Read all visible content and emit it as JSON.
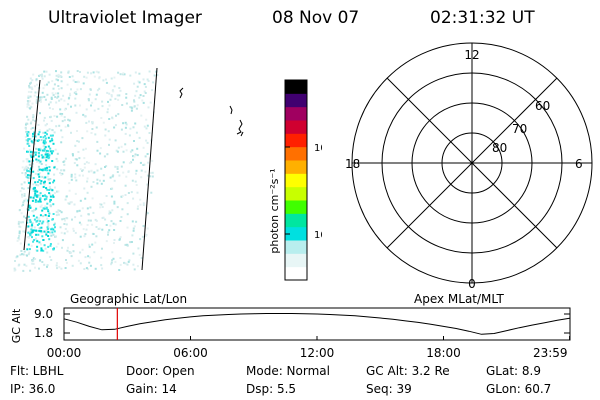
{
  "header": {
    "title": "Ultraviolet Imager",
    "date": "08 Nov 07",
    "time": "02:31:32 UT"
  },
  "colorbar": {
    "label": "photon cm⁻²s⁻¹",
    "scale": "log",
    "ticks": [
      "10",
      "100"
    ],
    "colors": [
      "#ffffff",
      "#e8f6f6",
      "#b8eeee",
      "#00e0e0",
      "#00e6a0",
      "#40ff00",
      "#c8ff00",
      "#ffff00",
      "#ffb000",
      "#ff7000",
      "#ff2000",
      "#d00030",
      "#a00060",
      "#400070",
      "#000000"
    ]
  },
  "polar": {
    "ring_labels": [
      "80",
      "70",
      "60"
    ],
    "mlt_labels": {
      "top": "12",
      "right": "6",
      "bottom": "0",
      "left": "18"
    }
  },
  "panel_labels": {
    "left": "Geographic Lat/Lon",
    "right": "Apex MLat/MLT"
  },
  "altitude_strip": {
    "axis_label": "GC Alt",
    "y_ticks": [
      "9.0",
      "1.8"
    ]
  },
  "chart_data": {
    "type": "line",
    "xlabel": "",
    "ylabel": "GC Alt",
    "x_ticks": [
      "00:00",
      "06:00",
      "12:00",
      "18:00",
      "23:59"
    ],
    "xlim": [
      0,
      24
    ],
    "ylim": [
      1.8,
      9.0
    ],
    "marker_time": 2.53,
    "x": [
      0,
      0.6,
      1.2,
      1.8,
      2.4,
      3,
      3.6,
      4.2,
      4.8,
      5.4,
      6,
      6.6,
      7.2,
      7.8,
      8.4,
      9,
      9.6,
      10.2,
      10.8,
      11.4,
      12,
      12.6,
      13.2,
      13.8,
      14.4,
      15,
      15.6,
      16.2,
      16.8,
      17.4,
      18,
      18.6,
      19.2,
      19.8,
      20.4,
      21,
      21.6,
      22.2,
      22.8,
      23.4,
      23.98
    ],
    "y": [
      7.2,
      5.9,
      4.3,
      3.0,
      3.2,
      4.3,
      5.3,
      6.1,
      6.8,
      7.4,
      7.9,
      8.3,
      8.6,
      8.8,
      9.0,
      9.1,
      9.2,
      9.2,
      9.2,
      9.1,
      9.0,
      8.8,
      8.6,
      8.3,
      7.9,
      7.5,
      7.0,
      6.4,
      5.8,
      5.1,
      4.3,
      3.5,
      2.5,
      1.3,
      1.6,
      2.7,
      3.8,
      4.8,
      5.7,
      6.6,
      7.4
    ]
  },
  "info": {
    "row1": {
      "flt": "Flt: LBHL",
      "door": "Door: Open",
      "mode": "Mode: Normal",
      "gcalt": "GC Alt: 3.2 Re",
      "glat": "GLat:   8.9"
    },
    "row2": {
      "ip": "IP: 36.0",
      "gain": "Gain: 14",
      "dsp": "Dsp:    5.5",
      "seq": "Seq: 39",
      "glon": "GLon: 60.7"
    }
  }
}
